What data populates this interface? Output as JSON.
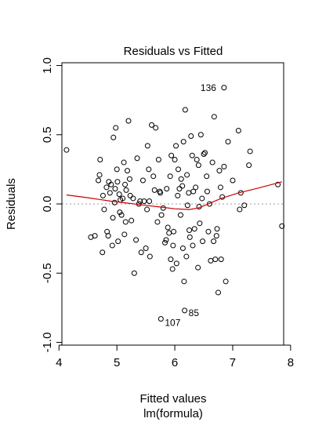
{
  "chart_data": {
    "type": "scatter",
    "title": "Residuals vs Fitted",
    "xlabel": "Fitted values",
    "xlabel2": "lm(formula)",
    "ylabel": "Residuals",
    "xlim": [
      4.05,
      7.88
    ],
    "ylim": [
      -1.02,
      1.02
    ],
    "xticks": [
      4,
      5,
      6,
      7,
      8
    ],
    "yticks": [
      -1.0,
      -0.5,
      0.0,
      0.5,
      1.0
    ],
    "xtick_labels": [
      "4",
      "5",
      "6",
      "7",
      "8"
    ],
    "ytick_labels": [
      "-1.0",
      "-0.5",
      "0.0",
      "0.5",
      "1.0"
    ],
    "reference_line_y": 0,
    "smooth_color": "#cc0000",
    "smooth": [
      [
        4.13,
        0.065
      ],
      [
        4.5,
        0.045
      ],
      [
        4.9,
        0.02
      ],
      [
        5.2,
        0.005
      ],
      [
        5.5,
        -0.01
      ],
      [
        5.8,
        -0.025
      ],
      [
        6.0,
        -0.035
      ],
      [
        6.25,
        -0.04
      ],
      [
        6.4,
        -0.03
      ],
      [
        6.55,
        -0.005
      ],
      [
        6.8,
        0.04
      ],
      [
        7.1,
        0.08
      ],
      [
        7.4,
        0.11
      ],
      [
        7.85,
        0.16
      ]
    ],
    "labeled_points": [
      {
        "label": "136",
        "x": 6.85,
        "y": 0.84
      },
      {
        "label": "107",
        "x": 5.76,
        "y": -0.83
      },
      {
        "label": "85",
        "x": 6.17,
        "y": -0.77
      }
    ],
    "points": [
      [
        4.13,
        0.39
      ],
      [
        4.55,
        -0.24
      ],
      [
        4.62,
        -0.23
      ],
      [
        4.68,
        0.17
      ],
      [
        4.7,
        0.21
      ],
      [
        4.71,
        0.32
      ],
      [
        4.75,
        -0.35
      ],
      [
        4.78,
        -0.04
      ],
      [
        4.76,
        0.06
      ],
      [
        4.82,
        0.12
      ],
      [
        4.83,
        -0.2
      ],
      [
        4.85,
        -0.23
      ],
      [
        4.86,
        0.16
      ],
      [
        4.88,
        0.08
      ],
      [
        4.9,
        0.14
      ],
      [
        4.92,
        -0.3
      ],
      [
        4.93,
        -0.1
      ],
      [
        4.94,
        0.48
      ],
      [
        4.96,
        0.01
      ],
      [
        4.97,
        0.11
      ],
      [
        4.98,
        0.55
      ],
      [
        5.0,
        0.25
      ],
      [
        5.01,
        0.16
      ],
      [
        5.02,
        -0.27
      ],
      [
        5.04,
        0.07
      ],
      [
        5.05,
        -0.06
      ],
      [
        5.06,
        0.03
      ],
      [
        5.08,
        -0.08
      ],
      [
        5.1,
        0.04
      ],
      [
        5.12,
        0.3
      ],
      [
        5.13,
        -0.22
      ],
      [
        5.14,
        0.14
      ],
      [
        5.15,
        -0.13
      ],
      [
        5.16,
        0.1
      ],
      [
        5.18,
        0.24
      ],
      [
        5.2,
        0.6
      ],
      [
        5.22,
        0.18
      ],
      [
        5.23,
        0.06
      ],
      [
        5.25,
        -0.12
      ],
      [
        5.28,
        0.04
      ],
      [
        5.3,
        -0.5
      ],
      [
        5.33,
        -0.26
      ],
      [
        5.35,
        0.33
      ],
      [
        5.38,
        0.0
      ],
      [
        5.4,
        0.02
      ],
      [
        5.42,
        -0.35
      ],
      [
        5.45,
        0.17
      ],
      [
        5.47,
        0.02
      ],
      [
        5.5,
        -0.32
      ],
      [
        5.52,
        -0.04
      ],
      [
        5.53,
        0.42
      ],
      [
        5.55,
        0.25
      ],
      [
        5.56,
        0.02
      ],
      [
        5.57,
        -0.38
      ],
      [
        5.6,
        0.57
      ],
      [
        5.63,
        0.2
      ],
      [
        5.65,
        0.1
      ],
      [
        5.67,
        0.55
      ],
      [
        5.7,
        -0.13
      ],
      [
        5.72,
        0.32
      ],
      [
        5.74,
        0.09
      ],
      [
        5.75,
        0.08
      ],
      [
        5.77,
        -0.08
      ],
      [
        5.8,
        -0.03
      ],
      [
        5.83,
        -0.28
      ],
      [
        5.85,
        -0.26
      ],
      [
        5.86,
        0.11
      ],
      [
        5.88,
        -0.17
      ],
      [
        5.9,
        -0.21
      ],
      [
        5.92,
        0.2
      ],
      [
        5.93,
        -0.4
      ],
      [
        5.94,
        0.35
      ],
      [
        5.96,
        -0.47
      ],
      [
        5.97,
        -0.3
      ],
      [
        5.98,
        -0.2
      ],
      [
        6.0,
        0.32
      ],
      [
        6.02,
        0.42
      ],
      [
        6.03,
        -0.43
      ],
      [
        6.05,
        0.06
      ],
      [
        6.06,
        0.25
      ],
      [
        6.08,
        0.11
      ],
      [
        6.1,
        -0.08
      ],
      [
        6.11,
        0.18
      ],
      [
        6.13,
        0.13
      ],
      [
        6.14,
        -0.32
      ],
      [
        6.15,
        0.45
      ],
      [
        6.16,
        -0.56
      ],
      [
        6.18,
        0.68
      ],
      [
        6.2,
        -0.38
      ],
      [
        6.21,
        0.21
      ],
      [
        6.22,
        -0.01
      ],
      [
        6.24,
        0.08
      ],
      [
        6.25,
        -0.19
      ],
      [
        6.26,
        -0.24
      ],
      [
        6.28,
        0.49
      ],
      [
        6.3,
        0.35
      ],
      [
        6.31,
        -0.3
      ],
      [
        6.32,
        0.09
      ],
      [
        6.34,
        -0.18
      ],
      [
        6.36,
        0.12
      ],
      [
        6.38,
        0.32
      ],
      [
        6.4,
        -0.46
      ],
      [
        6.41,
        0.28
      ],
      [
        6.42,
        -0.02
      ],
      [
        6.43,
        -0.14
      ],
      [
        6.45,
        0.5
      ],
      [
        6.47,
        0.04
      ],
      [
        6.48,
        -0.27
      ],
      [
        6.5,
        0.36
      ],
      [
        6.52,
        0.37
      ],
      [
        6.55,
        0.2
      ],
      [
        6.56,
        0.09
      ],
      [
        6.58,
        -0.2
      ],
      [
        6.6,
        0.0
      ],
      [
        6.62,
        -0.41
      ],
      [
        6.65,
        0.3
      ],
      [
        6.67,
        -0.27
      ],
      [
        6.68,
        0.63
      ],
      [
        6.7,
        -0.4
      ],
      [
        6.72,
        -0.23
      ],
      [
        6.73,
        -0.18
      ],
      [
        6.75,
        -0.64
      ],
      [
        6.77,
        0.24
      ],
      [
        6.79,
        0.12
      ],
      [
        6.8,
        -0.4
      ],
      [
        6.82,
        0.05
      ],
      [
        6.85,
        0.27
      ],
      [
        6.88,
        -0.56
      ],
      [
        6.92,
        0.45
      ],
      [
        7.0,
        0.17
      ],
      [
        7.1,
        0.53
      ],
      [
        7.12,
        -0.04
      ],
      [
        7.14,
        0.08
      ],
      [
        7.2,
        -0.01
      ],
      [
        7.28,
        0.28
      ],
      [
        7.3,
        0.38
      ],
      [
        7.78,
        0.14
      ],
      [
        7.85,
        -0.16
      ]
    ]
  }
}
